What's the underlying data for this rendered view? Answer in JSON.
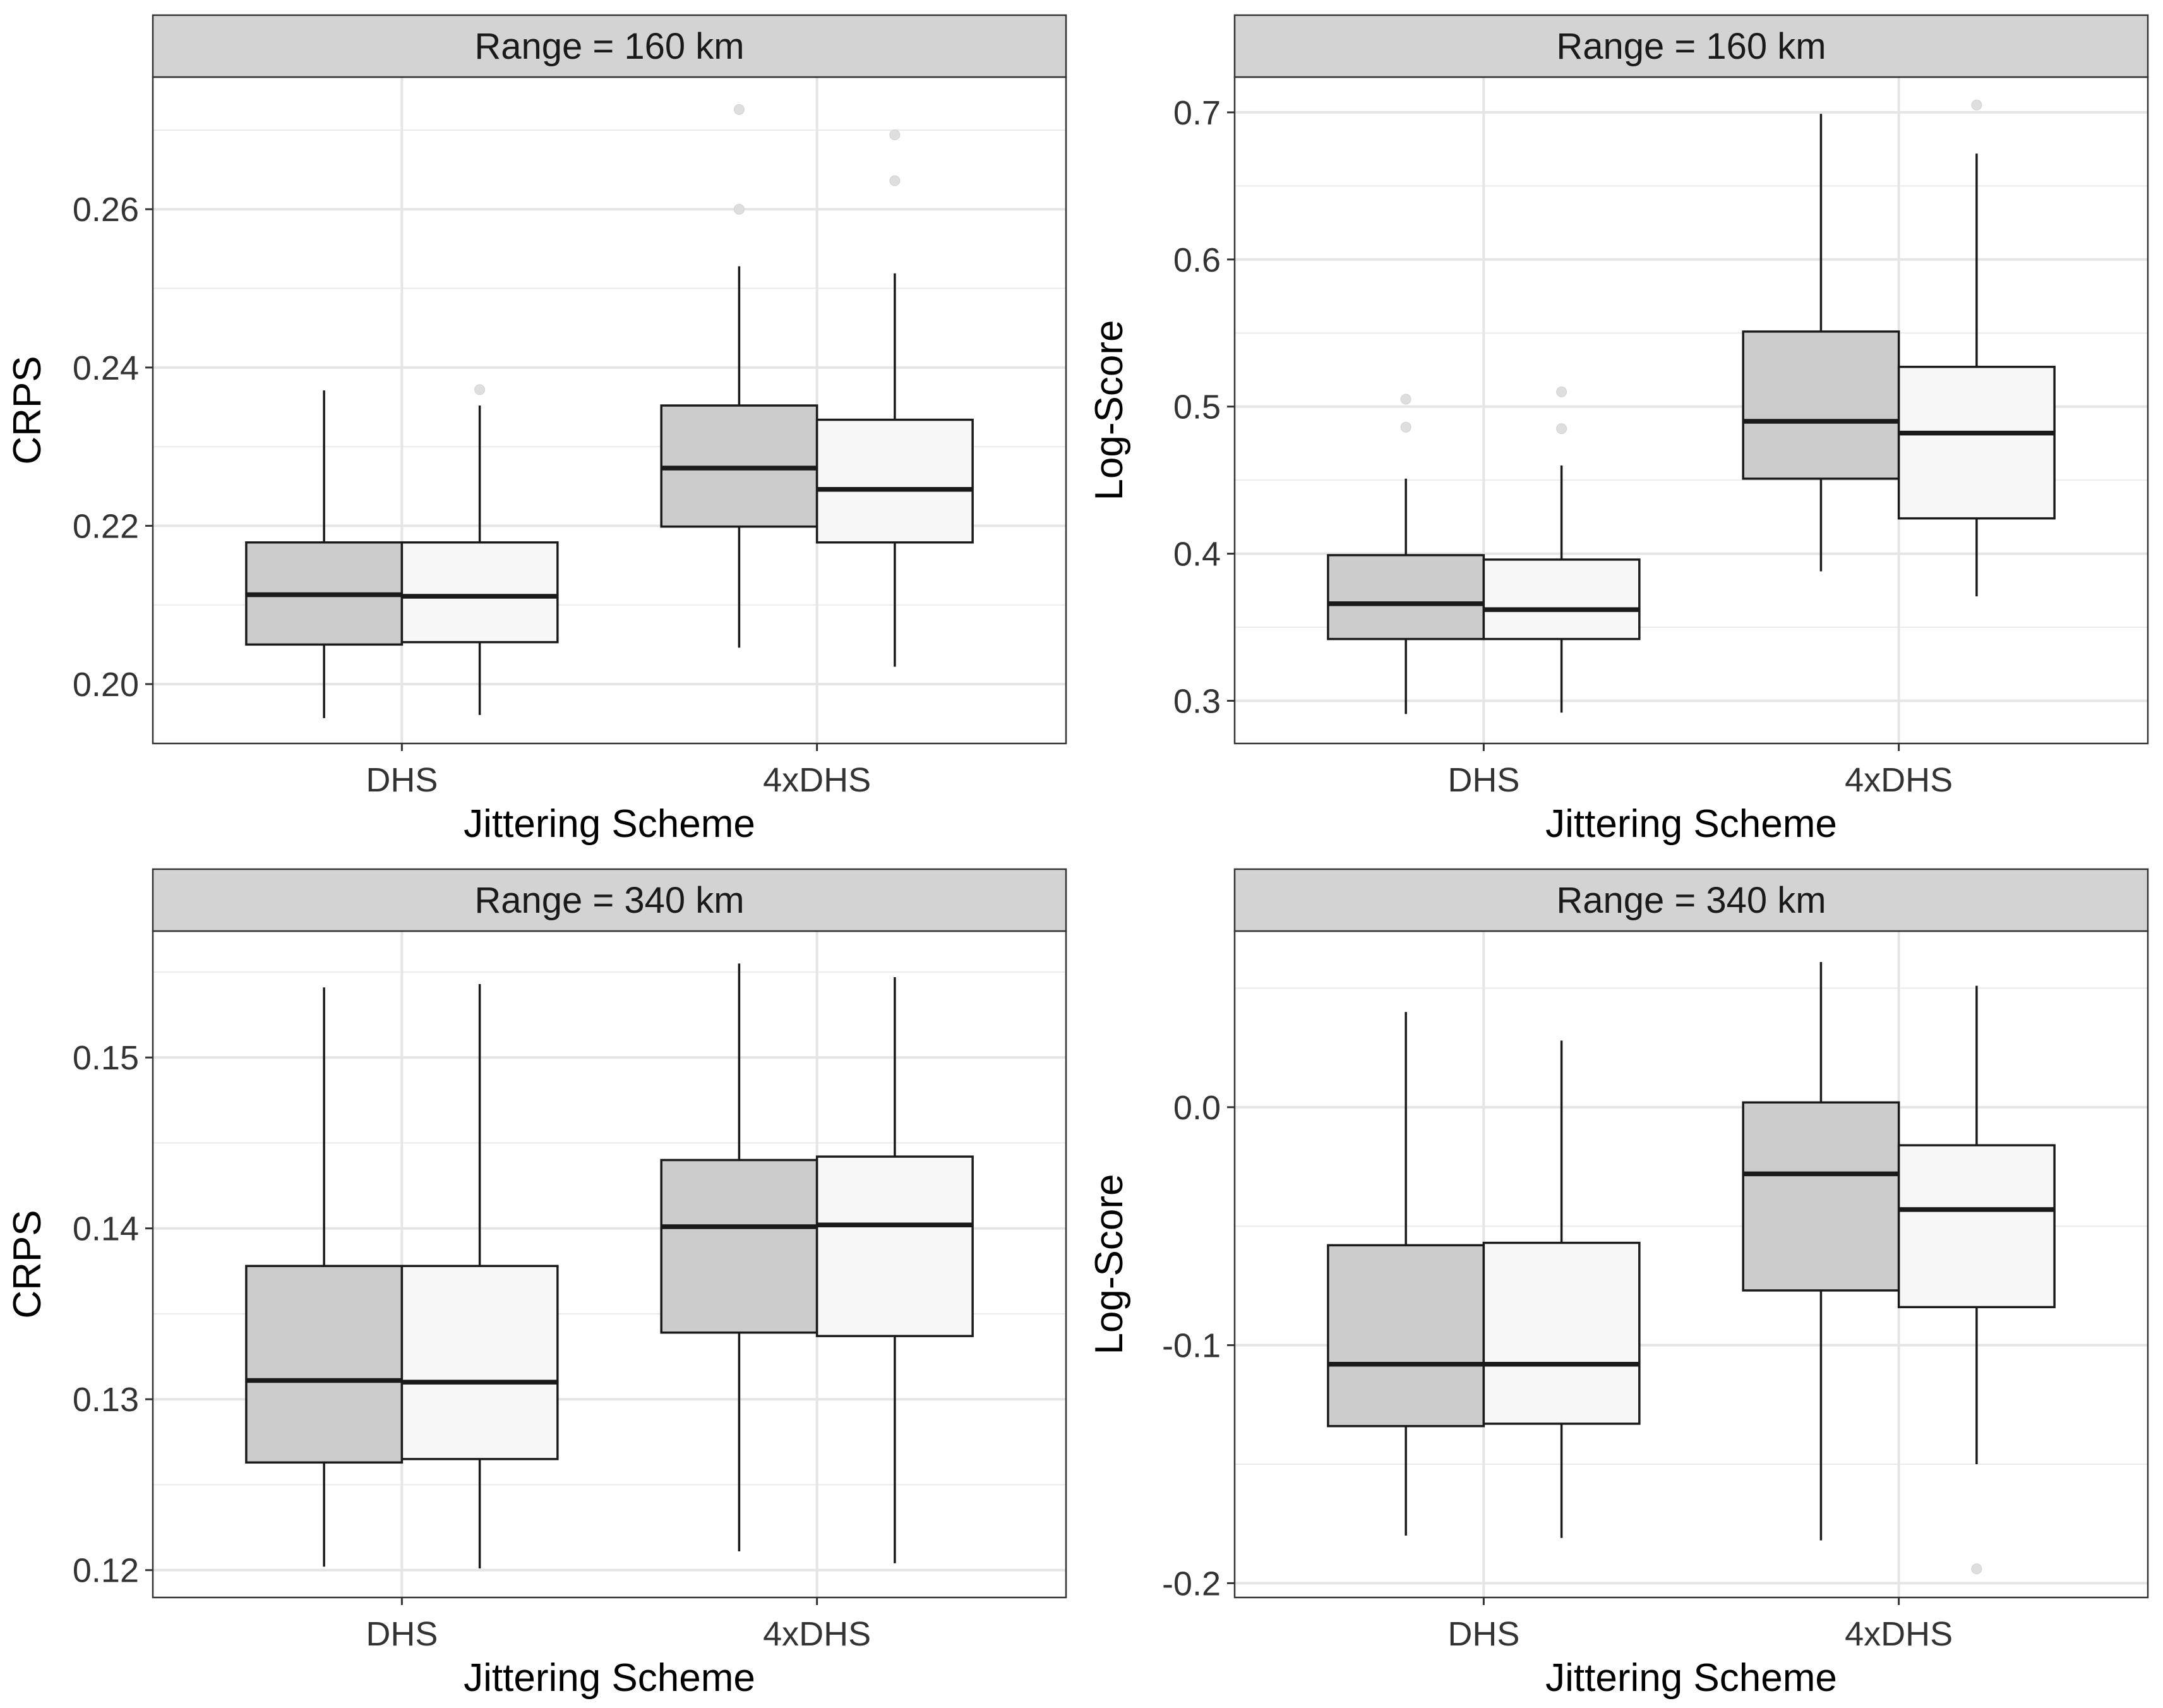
{
  "chart_data": [
    {
      "type": "box",
      "strip": "Range = 160 km",
      "xlabel": "Jittering Scheme",
      "ylabel": "CRPS",
      "categories": [
        "DHS",
        "4xDHS"
      ],
      "ylim": [
        0.1925,
        0.2767
      ],
      "yticks": [
        0.2,
        0.22,
        0.24,
        0.26
      ],
      "ytick_labels": [
        "0.20",
        "0.22",
        "0.24",
        "0.26"
      ],
      "grid": true,
      "boxes": [
        {
          "category": "DHS",
          "fill": "#cccccc",
          "whisker_low": 0.1957,
          "q1": 0.205,
          "median": 0.2113,
          "q3": 0.2179,
          "whisker_high": 0.2371,
          "outliers": []
        },
        {
          "category": "DHS",
          "fill": "#f7f7f7",
          "whisker_low": 0.1961,
          "q1": 0.2053,
          "median": 0.2111,
          "q3": 0.2179,
          "whisker_high": 0.2352,
          "outliers": [
            0.2372
          ]
        },
        {
          "category": "4xDHS",
          "fill": "#cccccc",
          "whisker_low": 0.2046,
          "q1": 0.2199,
          "median": 0.2273,
          "q3": 0.2352,
          "whisker_high": 0.2528,
          "outliers": [
            0.26,
            0.2726
          ]
        },
        {
          "category": "4xDHS",
          "fill": "#f7f7f7",
          "whisker_low": 0.2022,
          "q1": 0.2179,
          "median": 0.2246,
          "q3": 0.2334,
          "whisker_high": 0.2519,
          "outliers": [
            0.2636,
            0.2694
          ]
        }
      ]
    },
    {
      "type": "box",
      "strip": "Range = 160 km",
      "xlabel": "Jittering Scheme",
      "ylabel": "Log-Score",
      "categories": [
        "DHS",
        "4xDHS"
      ],
      "ylim": [
        0.271,
        0.724
      ],
      "yticks": [
        0.3,
        0.4,
        0.5,
        0.6,
        0.7
      ],
      "ytick_labels": [
        "0.3",
        "0.4",
        "0.5",
        "0.6",
        "0.7"
      ],
      "grid": true,
      "boxes": [
        {
          "category": "DHS",
          "fill": "#cccccc",
          "whisker_low": 0.291,
          "q1": 0.342,
          "median": 0.366,
          "q3": 0.399,
          "whisker_high": 0.451,
          "outliers": [
            0.486,
            0.505
          ]
        },
        {
          "category": "DHS",
          "fill": "#f7f7f7",
          "whisker_low": 0.292,
          "q1": 0.342,
          "median": 0.362,
          "q3": 0.396,
          "whisker_high": 0.46,
          "outliers": [
            0.485,
            0.51
          ]
        },
        {
          "category": "4xDHS",
          "fill": "#cccccc",
          "whisker_low": 0.388,
          "q1": 0.451,
          "median": 0.49,
          "q3": 0.551,
          "whisker_high": 0.699,
          "outliers": []
        },
        {
          "category": "4xDHS",
          "fill": "#f7f7f7",
          "whisker_low": 0.371,
          "q1": 0.424,
          "median": 0.482,
          "q3": 0.527,
          "whisker_high": 0.672,
          "outliers": [
            0.705
          ]
        }
      ]
    },
    {
      "type": "box",
      "strip": "Range = 340 km",
      "xlabel": "Jittering Scheme",
      "ylabel": "CRPS",
      "categories": [
        "DHS",
        "4xDHS"
      ],
      "ylim": [
        0.1184,
        0.1574
      ],
      "yticks": [
        0.12,
        0.13,
        0.14,
        0.15
      ],
      "ytick_labels": [
        "0.12",
        "0.13",
        "0.14",
        "0.15"
      ],
      "grid": true,
      "boxes": [
        {
          "category": "DHS",
          "fill": "#cccccc",
          "whisker_low": 0.1202,
          "q1": 0.1263,
          "median": 0.1311,
          "q3": 0.1378,
          "whisker_high": 0.1541,
          "outliers": []
        },
        {
          "category": "DHS",
          "fill": "#f7f7f7",
          "whisker_low": 0.1201,
          "q1": 0.1265,
          "median": 0.131,
          "q3": 0.1378,
          "whisker_high": 0.1543,
          "outliers": []
        },
        {
          "category": "4xDHS",
          "fill": "#cccccc",
          "whisker_low": 0.1211,
          "q1": 0.1339,
          "median": 0.1401,
          "q3": 0.144,
          "whisker_high": 0.1555,
          "outliers": []
        },
        {
          "category": "4xDHS",
          "fill": "#f7f7f7",
          "whisker_low": 0.1204,
          "q1": 0.1337,
          "median": 0.1402,
          "q3": 0.1442,
          "whisker_high": 0.1547,
          "outliers": []
        }
      ]
    },
    {
      "type": "box",
      "strip": "Range = 340 km",
      "xlabel": "Jittering Scheme",
      "ylabel": "Log-Score",
      "categories": [
        "DHS",
        "4xDHS"
      ],
      "ylim": [
        -0.206,
        0.074
      ],
      "yticks": [
        -0.2,
        -0.1,
        0.0
      ],
      "ytick_labels": [
        "-0.2",
        "-0.1",
        "0.0"
      ],
      "grid": true,
      "boxes": [
        {
          "category": "DHS",
          "fill": "#cccccc",
          "whisker_low": -0.18,
          "q1": -0.134,
          "median": -0.108,
          "q3": -0.058,
          "whisker_high": 0.04,
          "outliers": []
        },
        {
          "category": "DHS",
          "fill": "#f7f7f7",
          "whisker_low": -0.181,
          "q1": -0.133,
          "median": -0.108,
          "q3": -0.057,
          "whisker_high": 0.028,
          "outliers": []
        },
        {
          "category": "4xDHS",
          "fill": "#cccccc",
          "whisker_low": -0.182,
          "q1": -0.077,
          "median": -0.028,
          "q3": 0.002,
          "whisker_high": 0.061,
          "outliers": []
        },
        {
          "category": "4xDHS",
          "fill": "#f7f7f7",
          "whisker_low": -0.15,
          "q1": -0.084,
          "median": -0.043,
          "q3": -0.016,
          "whisker_high": 0.051,
          "outliers": [
            -0.194
          ]
        }
      ]
    }
  ]
}
